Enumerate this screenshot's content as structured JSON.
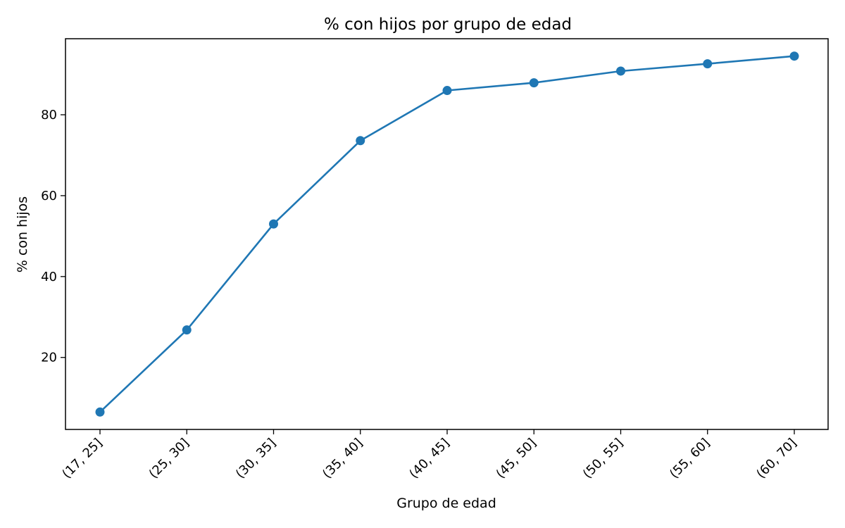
{
  "chart_data": {
    "type": "line",
    "title": "% con hijos por grupo de edad",
    "xlabel": "Grupo de edad",
    "ylabel": "% con hijos",
    "categories": [
      "(17, 25]",
      "(25, 30]",
      "(30, 35]",
      "(35, 40]",
      "(40, 45]",
      "(45, 50]",
      "(50, 55]",
      "(55, 60]",
      "(60, 70]"
    ],
    "values": [
      6.5,
      26.8,
      53.0,
      73.6,
      86.0,
      87.9,
      90.8,
      92.6,
      94.5
    ],
    "ylim": [
      2.2,
      98.8
    ],
    "yticks": [
      20,
      40,
      60,
      80
    ],
    "grid": false,
    "marker": "circle",
    "colors": {
      "series": "#1f77b4",
      "axes": "#000000",
      "background": "#ffffff"
    }
  }
}
